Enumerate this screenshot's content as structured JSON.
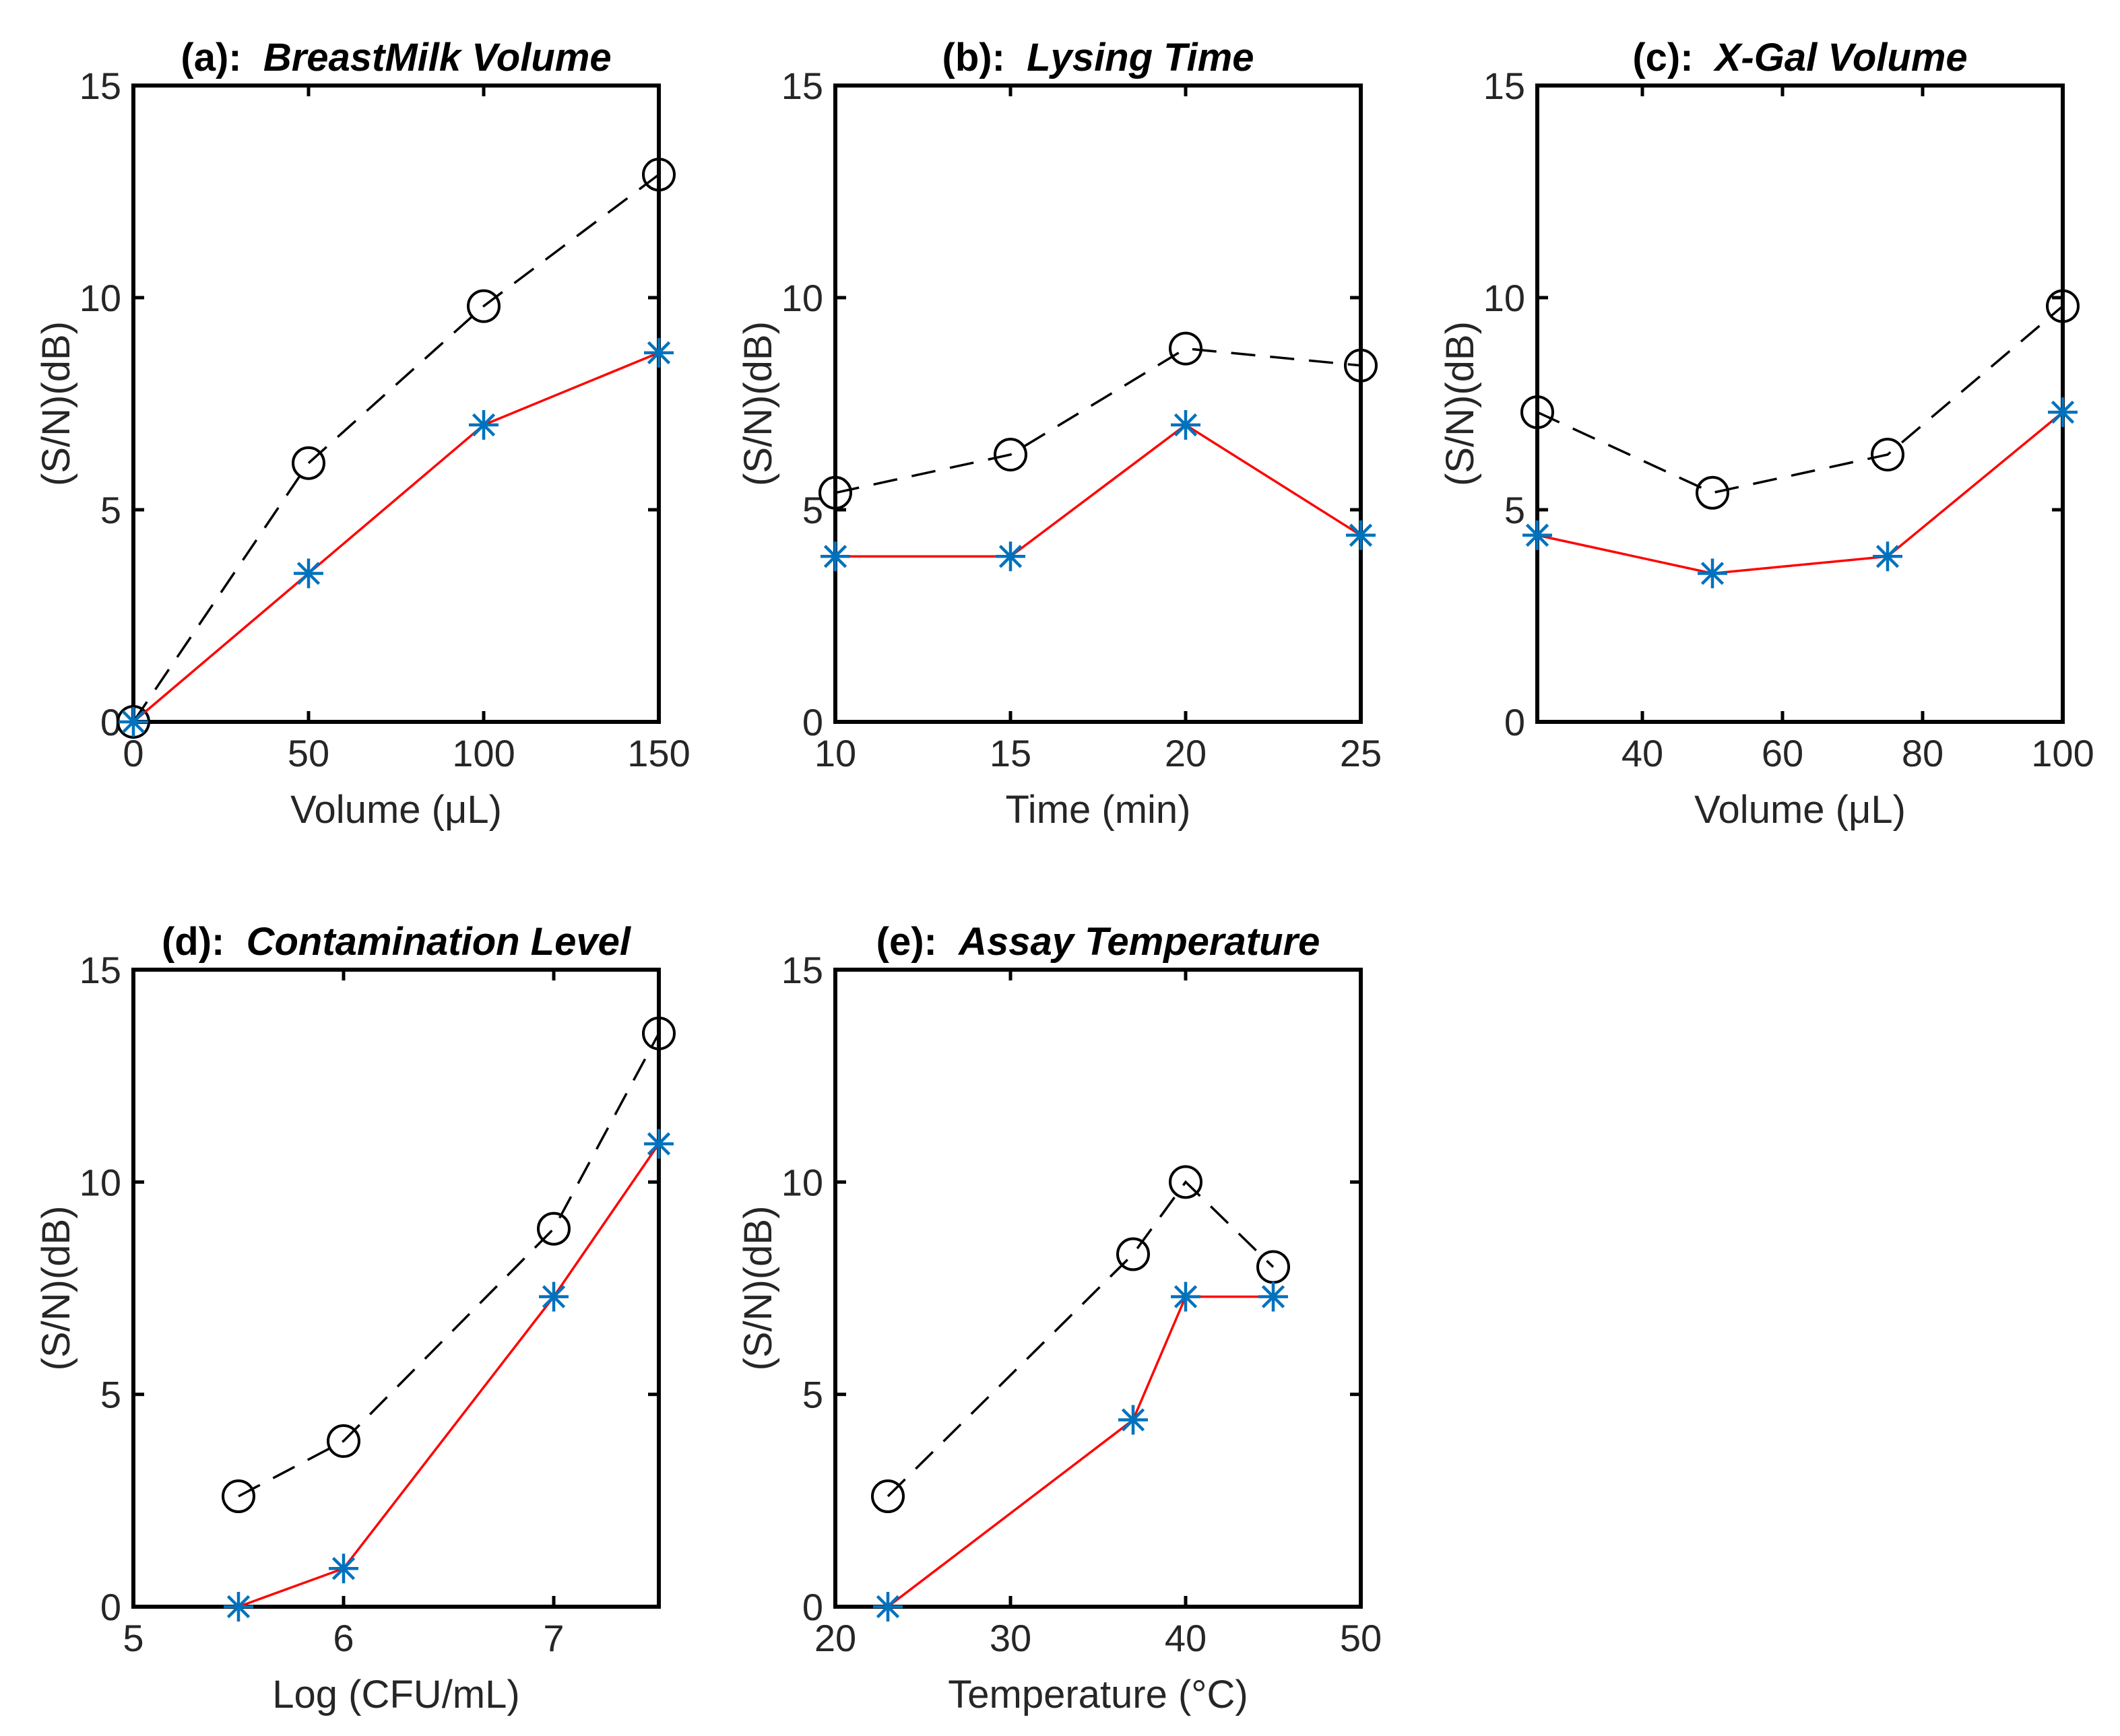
{
  "colors": {
    "series_a": "#000000",
    "series_b": "#ff0000",
    "marker_b": "#0072bd"
  },
  "chart_data": [
    {
      "type": "line",
      "title_prefix": "(a):",
      "title_main": "BreastMilk Volume",
      "xlabel": "Volume (μL)",
      "ylabel": "(S/N)(dB)",
      "xlim": [
        0,
        150
      ],
      "ylim": [
        0,
        15
      ],
      "xticks": [
        0,
        50,
        100,
        150
      ],
      "yticks": [
        0,
        5,
        10,
        15
      ],
      "grid": false,
      "x": [
        0,
        50,
        100,
        150
      ],
      "series": [
        {
          "style": "dashed-circle",
          "values": [
            0,
            6.1,
            9.8,
            12.9
          ]
        },
        {
          "style": "solid-star",
          "values": [
            0,
            3.5,
            7.0,
            8.7
          ]
        }
      ]
    },
    {
      "type": "line",
      "title_prefix": "(b):",
      "title_main": "Lysing Time",
      "xlabel": "Time (min)",
      "ylabel": "(S/N)(dB)",
      "xlim": [
        10,
        25
      ],
      "ylim": [
        0,
        15
      ],
      "xticks": [
        10,
        15,
        20,
        25
      ],
      "yticks": [
        0,
        5,
        10,
        15
      ],
      "grid": false,
      "x": [
        10,
        15,
        20,
        25
      ],
      "series": [
        {
          "style": "dashed-circle",
          "values": [
            5.4,
            6.3,
            8.8,
            8.4
          ]
        },
        {
          "style": "solid-star",
          "values": [
            3.9,
            3.9,
            7.0,
            4.4
          ]
        }
      ]
    },
    {
      "type": "line",
      "title_prefix": "(c):",
      "title_main": "X-Gal Volume",
      "xlabel": "Volume (μL)",
      "ylabel": "(S/N)(dB)",
      "xlim": [
        25,
        100
      ],
      "ylim": [
        0,
        15
      ],
      "xticks": [
        40,
        60,
        80,
        100
      ],
      "yticks": [
        0,
        5,
        10,
        15
      ],
      "grid": false,
      "x": [
        25,
        50,
        75,
        100
      ],
      "series": [
        {
          "style": "dashed-circle",
          "values": [
            7.3,
            5.4,
            6.3,
            9.8
          ]
        },
        {
          "style": "solid-star",
          "values": [
            4.4,
            3.5,
            3.9,
            7.3
          ]
        }
      ]
    },
    {
      "type": "line",
      "title_prefix": "(d):",
      "title_main": "Contamination Level",
      "xlabel": "Log (CFU/mL)",
      "ylabel": "(S/N)(dB)",
      "xlim": [
        5,
        7.5
      ],
      "ylim": [
        0,
        15
      ],
      "xticks": [
        5,
        6,
        7
      ],
      "yticks": [
        0,
        5,
        10,
        15
      ],
      "grid": false,
      "x": [
        5.5,
        6,
        7,
        7.5
      ],
      "series": [
        {
          "style": "dashed-circle",
          "values": [
            2.6,
            3.9,
            8.9,
            13.5
          ]
        },
        {
          "style": "solid-star",
          "values": [
            0,
            0.9,
            7.3,
            10.9
          ]
        }
      ]
    },
    {
      "type": "line",
      "title_prefix": "(e):",
      "title_main": "Assay Temperature",
      "xlabel": "Temperature (°C)",
      "ylabel": "(S/N)(dB)",
      "xlim": [
        20,
        50
      ],
      "ylim": [
        0,
        15
      ],
      "xticks": [
        20,
        30,
        40,
        50
      ],
      "yticks": [
        0,
        5,
        10,
        15
      ],
      "grid": false,
      "x": [
        23,
        37,
        40,
        45
      ],
      "series": [
        {
          "style": "dashed-circle",
          "values": [
            2.6,
            8.3,
            10.0,
            8.0
          ]
        },
        {
          "style": "solid-star",
          "values": [
            0,
            4.4,
            7.3,
            7.3
          ]
        }
      ]
    }
  ]
}
